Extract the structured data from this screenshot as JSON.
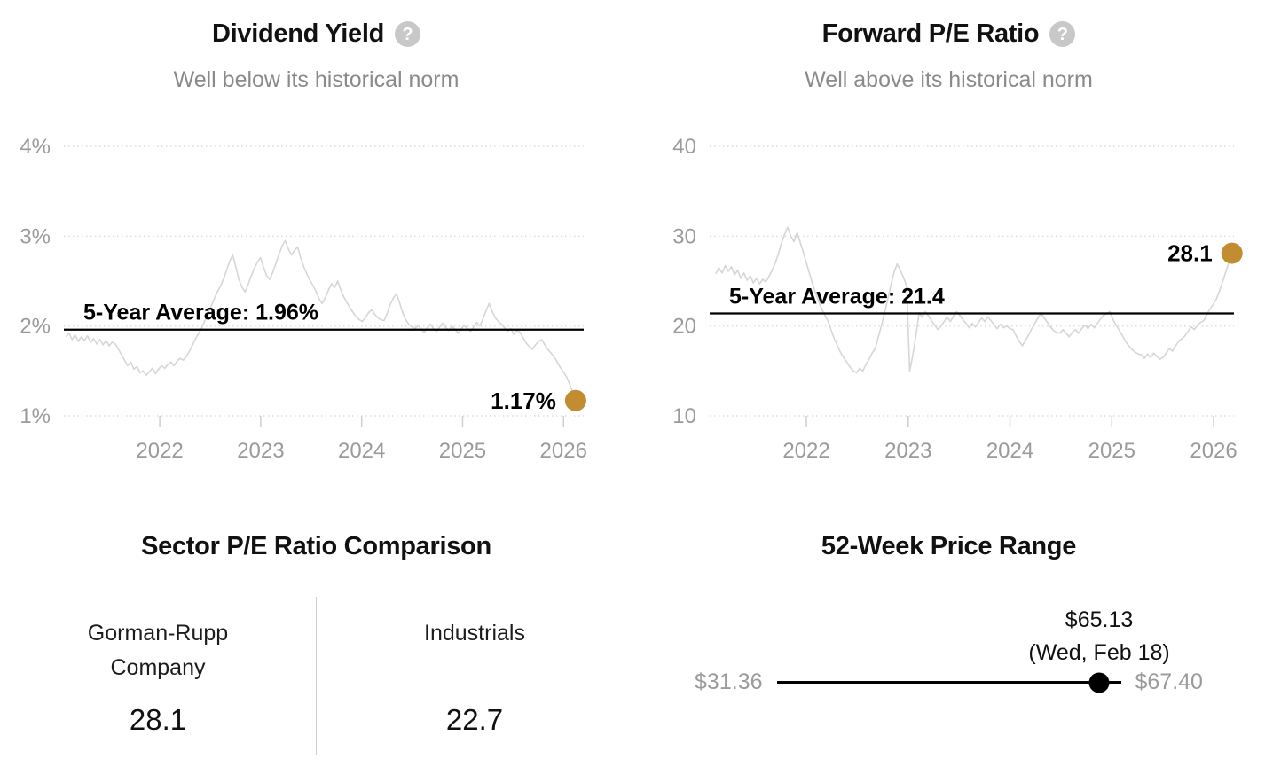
{
  "colors": {
    "accent_gold": "#C28D30",
    "chart_line": "#D6D6D6",
    "grid_line": "#DCDCDC",
    "axis_text": "#9B9B9B",
    "muted_text": "#8A8A8A",
    "title_text": "#111111",
    "average_line": "#000000",
    "indicator_black": "#000000",
    "divider": "#CCCCCC",
    "help_icon_bg": "#C8C8C8"
  },
  "icons": {
    "help_glyph": "?"
  },
  "chart_data": [
    {
      "type": "line",
      "title": "Dividend Yield",
      "subtitle": "Well below its historical norm",
      "y_domain": [
        1,
        4
      ],
      "x_domain": [
        2021.05,
        2026.2
      ],
      "y_ticks": [
        {
          "value": 4,
          "label": "4%"
        },
        {
          "value": 3,
          "label": "3%"
        },
        {
          "value": 2,
          "label": "2%"
        },
        {
          "value": 1,
          "label": "1%"
        }
      ],
      "x_ticks": [
        {
          "year": 2022,
          "label": "2022"
        },
        {
          "year": 2023,
          "label": "2023"
        },
        {
          "year": 2024,
          "label": "2024"
        },
        {
          "year": 2025,
          "label": "2025"
        },
        {
          "year": 2026,
          "label": "2026"
        }
      ],
      "average": {
        "value": 1.96,
        "label": "5-Year Average: 1.96%"
      },
      "current": {
        "value": 1.17,
        "label": "1.17%"
      },
      "series": {
        "x_start": 2021.07,
        "x_end": 2026.12,
        "values": [
          1.88,
          1.92,
          1.85,
          1.9,
          1.83,
          1.88,
          1.84,
          1.89,
          1.82,
          1.86,
          1.8,
          1.85,
          1.79,
          1.84,
          1.78,
          1.82,
          1.8,
          1.74,
          1.68,
          1.62,
          1.56,
          1.6,
          1.52,
          1.55,
          1.48,
          1.5,
          1.45,
          1.49,
          1.53,
          1.47,
          1.52,
          1.56,
          1.53,
          1.57,
          1.6,
          1.56,
          1.61,
          1.64,
          1.62,
          1.66,
          1.72,
          1.79,
          1.86,
          1.92,
          1.98,
          2.06,
          2.14,
          2.22,
          2.3,
          2.38,
          2.44,
          2.52,
          2.62,
          2.72,
          2.79,
          2.66,
          2.52,
          2.43,
          2.38,
          2.46,
          2.56,
          2.64,
          2.71,
          2.76,
          2.65,
          2.56,
          2.52,
          2.6,
          2.7,
          2.8,
          2.89,
          2.95,
          2.86,
          2.79,
          2.84,
          2.88,
          2.76,
          2.66,
          2.58,
          2.51,
          2.45,
          2.38,
          2.3,
          2.25,
          2.32,
          2.4,
          2.47,
          2.43,
          2.5,
          2.4,
          2.32,
          2.26,
          2.2,
          2.15,
          2.1,
          2.07,
          2.05,
          2.1,
          2.15,
          2.18,
          2.13,
          2.09,
          2.07,
          2.06,
          2.14,
          2.24,
          2.31,
          2.36,
          2.26,
          2.15,
          2.07,
          2.02,
          1.99,
          1.97,
          2.01,
          1.96,
          1.93,
          1.98,
          2.02,
          1.97,
          1.94,
          1.99,
          2.03,
          1.98,
          1.95,
          2.0,
          1.96,
          1.92,
          1.97,
          2.01,
          1.97,
          1.94,
          1.99,
          2.04,
          2.0,
          2.08,
          2.17,
          2.25,
          2.16,
          2.09,
          2.05,
          2.02,
          1.98,
          1.94,
          1.97,
          1.91,
          1.95,
          1.93,
          1.87,
          1.81,
          1.77,
          1.74,
          1.79,
          1.83,
          1.85,
          1.79,
          1.74,
          1.7,
          1.66,
          1.6,
          1.54,
          1.49,
          1.44,
          1.36,
          1.27,
          1.17
        ]
      }
    },
    {
      "type": "line",
      "title": "Forward P/E Ratio",
      "subtitle": "Well above its historical norm",
      "y_domain": [
        10,
        40
      ],
      "x_domain": [
        2021.05,
        2026.2
      ],
      "y_ticks": [
        {
          "value": 40,
          "label": "40"
        },
        {
          "value": 30,
          "label": "30"
        },
        {
          "value": 20,
          "label": "20"
        },
        {
          "value": 10,
          "label": "10"
        }
      ],
      "x_ticks": [
        {
          "year": 2022,
          "label": "2022"
        },
        {
          "year": 2023,
          "label": "2023"
        },
        {
          "year": 2024,
          "label": "2024"
        },
        {
          "year": 2025,
          "label": "2025"
        },
        {
          "year": 2026,
          "label": "2026"
        }
      ],
      "average": {
        "value": 21.4,
        "label": "5-Year Average: 21.4"
      },
      "current": {
        "value": 28.1,
        "label": "28.1"
      },
      "series": {
        "x_start": 2021.11,
        "x_end": 2026.18,
        "values": [
          25.8,
          26.5,
          25.9,
          26.7,
          26.1,
          26.6,
          25.7,
          26.2,
          25.3,
          25.9,
          25.1,
          25.6,
          24.8,
          25.3,
          24.7,
          25.2,
          24.9,
          25.5,
          26.2,
          27.0,
          28.0,
          29.2,
          30.2,
          31.0,
          30.0,
          29.4,
          30.4,
          29.3,
          28.2,
          27.0,
          25.8,
          24.6,
          23.6,
          22.6,
          21.8,
          21.1,
          20.5,
          19.4,
          18.5,
          17.7,
          17.0,
          16.4,
          15.9,
          15.4,
          15.0,
          14.8,
          15.3,
          15.0,
          15.7,
          16.3,
          17.0,
          17.5,
          18.8,
          20.1,
          21.5,
          23.0,
          24.6,
          26.0,
          26.9,
          26.2,
          25.4,
          24.5,
          15.0,
          16.8,
          19.0,
          21.5,
          21.0,
          21.6,
          21.1,
          20.6,
          20.1,
          19.6,
          20.0,
          20.5,
          21.0,
          20.5,
          21.1,
          21.6,
          21.2,
          20.7,
          20.3,
          19.8,
          20.3,
          19.9,
          20.4,
          20.9,
          20.5,
          21.0,
          20.6,
          20.1,
          19.7,
          20.2,
          19.8,
          20.0,
          19.7,
          19.6,
          18.9,
          18.3,
          17.8,
          18.4,
          19.0,
          19.7,
          20.3,
          20.9,
          21.4,
          20.9,
          20.4,
          19.9,
          19.5,
          19.3,
          19.2,
          19.6,
          19.2,
          18.8,
          19.3,
          19.6,
          19.2,
          19.7,
          20.1,
          19.7,
          20.2,
          19.8,
          20.3,
          20.8,
          21.2,
          21.4,
          21.6,
          20.7,
          20.1,
          19.5,
          18.9,
          18.3,
          17.8,
          17.4,
          17.1,
          16.9,
          16.8,
          16.4,
          16.9,
          16.5,
          17.0,
          16.6,
          16.3,
          16.5,
          17.0,
          17.5,
          17.2,
          17.8,
          18.3,
          18.6,
          18.9,
          19.4,
          19.9,
          19.6,
          20.1,
          20.4,
          20.6,
          21.3,
          21.9,
          22.4,
          23.0,
          23.9,
          24.9,
          26.0,
          27.1,
          28.1
        ]
      }
    },
    {
      "type": "table",
      "title": "Sector P/E Ratio Comparison",
      "columns": [
        {
          "label": "Gorman-Rupp Company",
          "value": "28.1"
        },
        {
          "label": "Industrials",
          "value": "22.7"
        }
      ]
    },
    {
      "type": "range",
      "title": "52-Week Price Range",
      "low": 31.36,
      "high": 67.4,
      "current": 65.13,
      "low_label": "$31.36",
      "high_label": "$67.40",
      "current_label": "$65.13",
      "current_date": "(Wed, Feb 18)",
      "indicator_fraction": 0.937
    }
  ]
}
